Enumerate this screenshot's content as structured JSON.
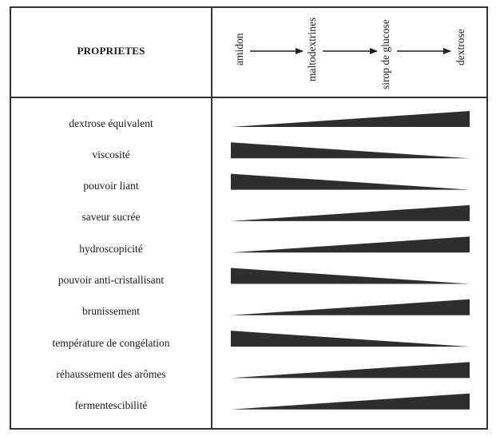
{
  "header": {
    "title": "PROPRIETES",
    "stages": [
      "amidon",
      "maltodextrines",
      "sirop de glucose",
      "dextrose"
    ]
  },
  "properties": [
    {
      "label": "dextrose équivalent",
      "trend": "increasing"
    },
    {
      "label": "viscosité",
      "trend": "decreasing"
    },
    {
      "label": "pouvoir liant",
      "trend": "decreasing"
    },
    {
      "label": "saveur sucrée",
      "trend": "increasing"
    },
    {
      "label": "hydroscopicité",
      "trend": "increasing"
    },
    {
      "label": "pouvoir anti-cristallisant",
      "trend": "decreasing"
    },
    {
      "label": "brunissement",
      "trend": "increasing"
    },
    {
      "label": "température de congélation",
      "trend": "decreasing"
    },
    {
      "label": "réhaussement des arômes",
      "trend": "increasing"
    },
    {
      "label": "fermentescibilité",
      "trend": "increasing"
    }
  ],
  "colors": {
    "wedge": "#2e2e2e",
    "line": "#333333",
    "arrow": "#222222"
  }
}
